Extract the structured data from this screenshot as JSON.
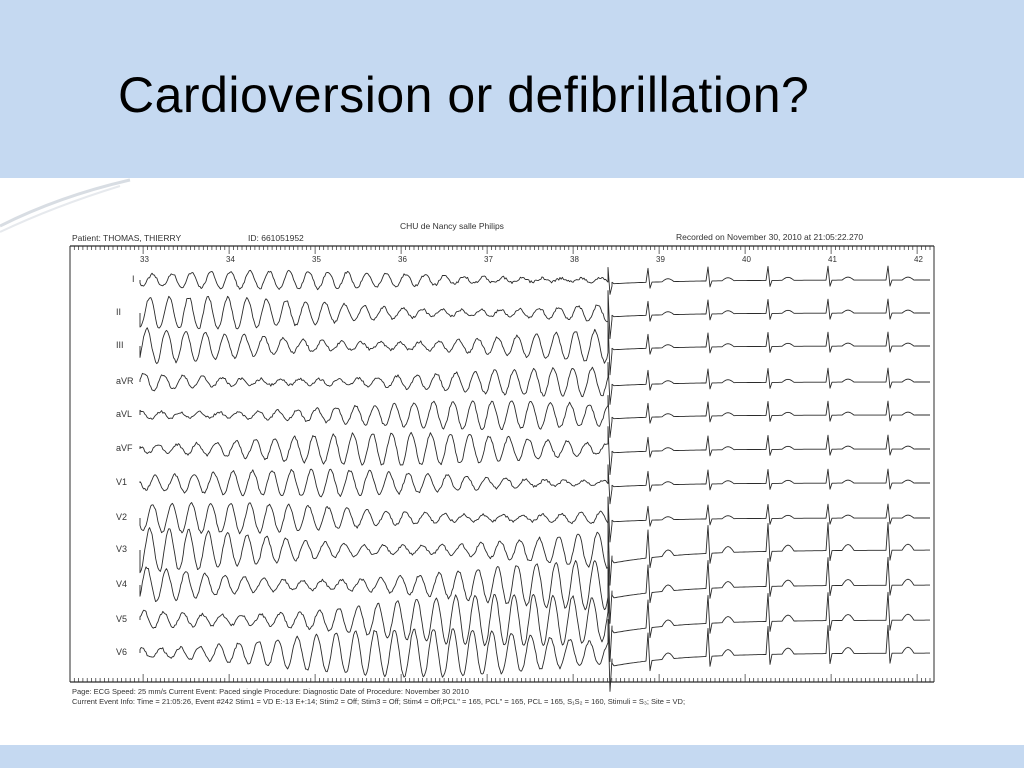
{
  "slide": {
    "title": "Cardioversion or defibrillation?"
  },
  "ecg": {
    "header_center": "CHU de Nancy salle Philips",
    "patient": "Patient: THOMAS, THIERRY",
    "patient_id": "ID: 661051952",
    "recorded": "Recorded on November 30, 2010 at 21:05:22.270",
    "seconds": [
      "33",
      "34",
      "35",
      "36",
      "37",
      "38",
      "39",
      "40",
      "41",
      "42"
    ],
    "leads": [
      "I",
      "II",
      "III",
      "aVR",
      "aVL",
      "aVF",
      "V1",
      "V2",
      "V3",
      "V4",
      "V5",
      "V6"
    ],
    "footer_line1": "Page: ECG   Speed: 25 mm/s      Current Event: Paced single       Procedure: Diagnostic    Date of Procedure: November 30 2010",
    "footer_line2": "Current Event Info: Time = 21:05:26,  Event #242   Stim1 = VD E:-13 E+:14;  Stim2 = Off;  Stim3 = Off;  Stim4 = Off;PCL\" = 165,  PCL\" = 165,  PCL = 165,  S₁S₂ = 160,   Stimuli = S₃;  Site = VD;"
  },
  "colors": {
    "title_band": "#c5d9f1",
    "trace": "#2b2b2b"
  }
}
